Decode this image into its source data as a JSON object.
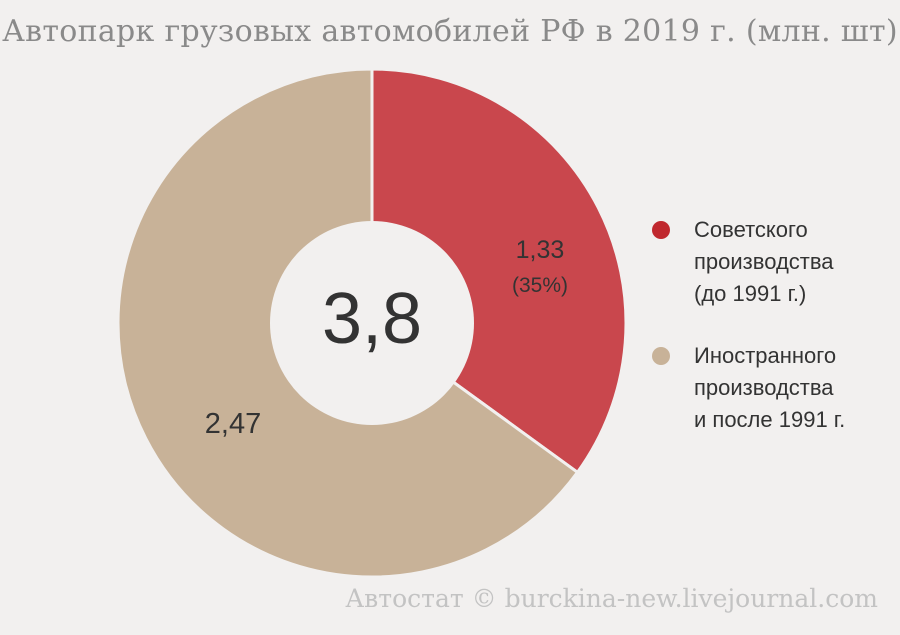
{
  "chart_data": {
    "type": "pie",
    "title": "Автопарк грузовых автомобилей РФ в 2019 г. (млн. шт)",
    "total_label": "3,8",
    "slices": [
      {
        "value": 1.33,
        "value_label": "1,33",
        "percent_label": "(35%)",
        "legend": "Советского\nпроизводства\n(до 1991 г.)",
        "color": "#c9474d",
        "marker_color": "#c0282e"
      },
      {
        "value": 2.47,
        "value_label": "2,47",
        "percent_label": "",
        "legend": "Иностранного\nпроизводства\nи после 1991 г.",
        "color": "#c8b298",
        "marker_color": "#c8b298"
      }
    ],
    "source": "Автостат © burckina-new.livejournal.com"
  }
}
